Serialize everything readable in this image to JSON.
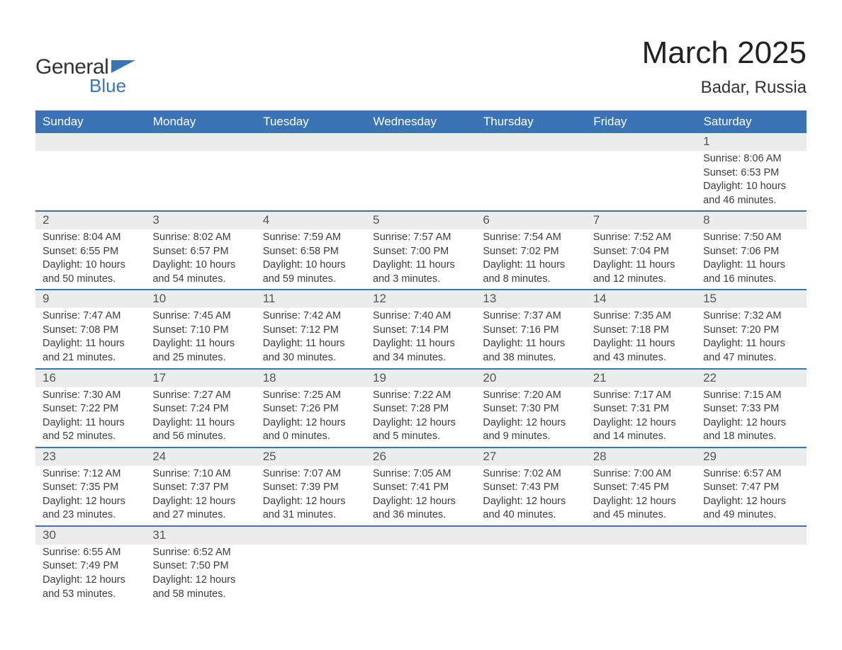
{
  "logo": {
    "text1": "General",
    "text2": "Blue"
  },
  "title": "March 2025",
  "location": "Badar, Russia",
  "colors": {
    "header_bg": "#3a74b4",
    "header_text": "#ffffff",
    "daynum_bg": "#ececec",
    "row_border": "#3a74b4",
    "body_text": "#3c3c3c",
    "page_bg": "#ffffff"
  },
  "fonts": {
    "title_size_pt": 33,
    "location_size_pt": 18,
    "header_size_pt": 13,
    "cell_size_pt": 11
  },
  "layout": {
    "columns": 7,
    "week_rows": 6,
    "start_weekday": "Sunday"
  },
  "weekdays": [
    "Sunday",
    "Monday",
    "Tuesday",
    "Wednesday",
    "Thursday",
    "Friday",
    "Saturday"
  ],
  "weeks": [
    [
      null,
      null,
      null,
      null,
      null,
      null,
      {
        "day": "1",
        "sunrise": "Sunrise: 8:06 AM",
        "sunset": "Sunset: 6:53 PM",
        "daylight": "Daylight: 10 hours and 46 minutes."
      }
    ],
    [
      {
        "day": "2",
        "sunrise": "Sunrise: 8:04 AM",
        "sunset": "Sunset: 6:55 PM",
        "daylight": "Daylight: 10 hours and 50 minutes."
      },
      {
        "day": "3",
        "sunrise": "Sunrise: 8:02 AM",
        "sunset": "Sunset: 6:57 PM",
        "daylight": "Daylight: 10 hours and 54 minutes."
      },
      {
        "day": "4",
        "sunrise": "Sunrise: 7:59 AM",
        "sunset": "Sunset: 6:58 PM",
        "daylight": "Daylight: 10 hours and 59 minutes."
      },
      {
        "day": "5",
        "sunrise": "Sunrise: 7:57 AM",
        "sunset": "Sunset: 7:00 PM",
        "daylight": "Daylight: 11 hours and 3 minutes."
      },
      {
        "day": "6",
        "sunrise": "Sunrise: 7:54 AM",
        "sunset": "Sunset: 7:02 PM",
        "daylight": "Daylight: 11 hours and 8 minutes."
      },
      {
        "day": "7",
        "sunrise": "Sunrise: 7:52 AM",
        "sunset": "Sunset: 7:04 PM",
        "daylight": "Daylight: 11 hours and 12 minutes."
      },
      {
        "day": "8",
        "sunrise": "Sunrise: 7:50 AM",
        "sunset": "Sunset: 7:06 PM",
        "daylight": "Daylight: 11 hours and 16 minutes."
      }
    ],
    [
      {
        "day": "9",
        "sunrise": "Sunrise: 7:47 AM",
        "sunset": "Sunset: 7:08 PM",
        "daylight": "Daylight: 11 hours and 21 minutes."
      },
      {
        "day": "10",
        "sunrise": "Sunrise: 7:45 AM",
        "sunset": "Sunset: 7:10 PM",
        "daylight": "Daylight: 11 hours and 25 minutes."
      },
      {
        "day": "11",
        "sunrise": "Sunrise: 7:42 AM",
        "sunset": "Sunset: 7:12 PM",
        "daylight": "Daylight: 11 hours and 30 minutes."
      },
      {
        "day": "12",
        "sunrise": "Sunrise: 7:40 AM",
        "sunset": "Sunset: 7:14 PM",
        "daylight": "Daylight: 11 hours and 34 minutes."
      },
      {
        "day": "13",
        "sunrise": "Sunrise: 7:37 AM",
        "sunset": "Sunset: 7:16 PM",
        "daylight": "Daylight: 11 hours and 38 minutes."
      },
      {
        "day": "14",
        "sunrise": "Sunrise: 7:35 AM",
        "sunset": "Sunset: 7:18 PM",
        "daylight": "Daylight: 11 hours and 43 minutes."
      },
      {
        "day": "15",
        "sunrise": "Sunrise: 7:32 AM",
        "sunset": "Sunset: 7:20 PM",
        "daylight": "Daylight: 11 hours and 47 minutes."
      }
    ],
    [
      {
        "day": "16",
        "sunrise": "Sunrise: 7:30 AM",
        "sunset": "Sunset: 7:22 PM",
        "daylight": "Daylight: 11 hours and 52 minutes."
      },
      {
        "day": "17",
        "sunrise": "Sunrise: 7:27 AM",
        "sunset": "Sunset: 7:24 PM",
        "daylight": "Daylight: 11 hours and 56 minutes."
      },
      {
        "day": "18",
        "sunrise": "Sunrise: 7:25 AM",
        "sunset": "Sunset: 7:26 PM",
        "daylight": "Daylight: 12 hours and 0 minutes."
      },
      {
        "day": "19",
        "sunrise": "Sunrise: 7:22 AM",
        "sunset": "Sunset: 7:28 PM",
        "daylight": "Daylight: 12 hours and 5 minutes."
      },
      {
        "day": "20",
        "sunrise": "Sunrise: 7:20 AM",
        "sunset": "Sunset: 7:30 PM",
        "daylight": "Daylight: 12 hours and 9 minutes."
      },
      {
        "day": "21",
        "sunrise": "Sunrise: 7:17 AM",
        "sunset": "Sunset: 7:31 PM",
        "daylight": "Daylight: 12 hours and 14 minutes."
      },
      {
        "day": "22",
        "sunrise": "Sunrise: 7:15 AM",
        "sunset": "Sunset: 7:33 PM",
        "daylight": "Daylight: 12 hours and 18 minutes."
      }
    ],
    [
      {
        "day": "23",
        "sunrise": "Sunrise: 7:12 AM",
        "sunset": "Sunset: 7:35 PM",
        "daylight": "Daylight: 12 hours and 23 minutes."
      },
      {
        "day": "24",
        "sunrise": "Sunrise: 7:10 AM",
        "sunset": "Sunset: 7:37 PM",
        "daylight": "Daylight: 12 hours and 27 minutes."
      },
      {
        "day": "25",
        "sunrise": "Sunrise: 7:07 AM",
        "sunset": "Sunset: 7:39 PM",
        "daylight": "Daylight: 12 hours and 31 minutes."
      },
      {
        "day": "26",
        "sunrise": "Sunrise: 7:05 AM",
        "sunset": "Sunset: 7:41 PM",
        "daylight": "Daylight: 12 hours and 36 minutes."
      },
      {
        "day": "27",
        "sunrise": "Sunrise: 7:02 AM",
        "sunset": "Sunset: 7:43 PM",
        "daylight": "Daylight: 12 hours and 40 minutes."
      },
      {
        "day": "28",
        "sunrise": "Sunrise: 7:00 AM",
        "sunset": "Sunset: 7:45 PM",
        "daylight": "Daylight: 12 hours and 45 minutes."
      },
      {
        "day": "29",
        "sunrise": "Sunrise: 6:57 AM",
        "sunset": "Sunset: 7:47 PM",
        "daylight": "Daylight: 12 hours and 49 minutes."
      }
    ],
    [
      {
        "day": "30",
        "sunrise": "Sunrise: 6:55 AM",
        "sunset": "Sunset: 7:49 PM",
        "daylight": "Daylight: 12 hours and 53 minutes."
      },
      {
        "day": "31",
        "sunrise": "Sunrise: 6:52 AM",
        "sunset": "Sunset: 7:50 PM",
        "daylight": "Daylight: 12 hours and 58 minutes."
      },
      null,
      null,
      null,
      null,
      null
    ]
  ]
}
